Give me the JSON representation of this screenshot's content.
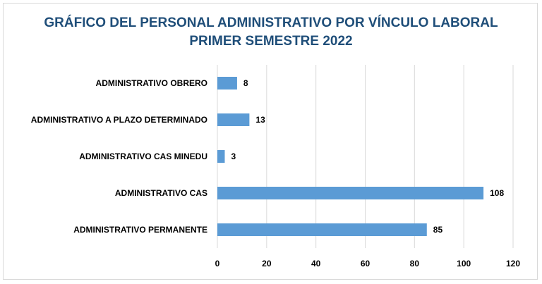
{
  "chart_data": {
    "type": "bar",
    "orientation": "horizontal",
    "title": "GRÁFICO DEL PERSONAL ADMINISTRATIVO POR VÍNCULO LABORAL",
    "subtitle": "PRIMER SEMESTRE 2022",
    "categories": [
      "ADMINISTRATIVO OBRERO",
      "ADMINISTRATIVO A PLAZO DETERMINADO",
      "ADMINISTRATIVO CAS MINEDU",
      "ADMINISTRATIVO CAS",
      "ADMINISTRATIVO PERMANENTE"
    ],
    "values": [
      8,
      13,
      3,
      108,
      85
    ],
    "xlim": [
      0,
      120
    ],
    "xticks": [
      0,
      20,
      40,
      60,
      80,
      100,
      120
    ],
    "grid": true,
    "bar_color": "#5b9bd5",
    "data_labels": true
  }
}
